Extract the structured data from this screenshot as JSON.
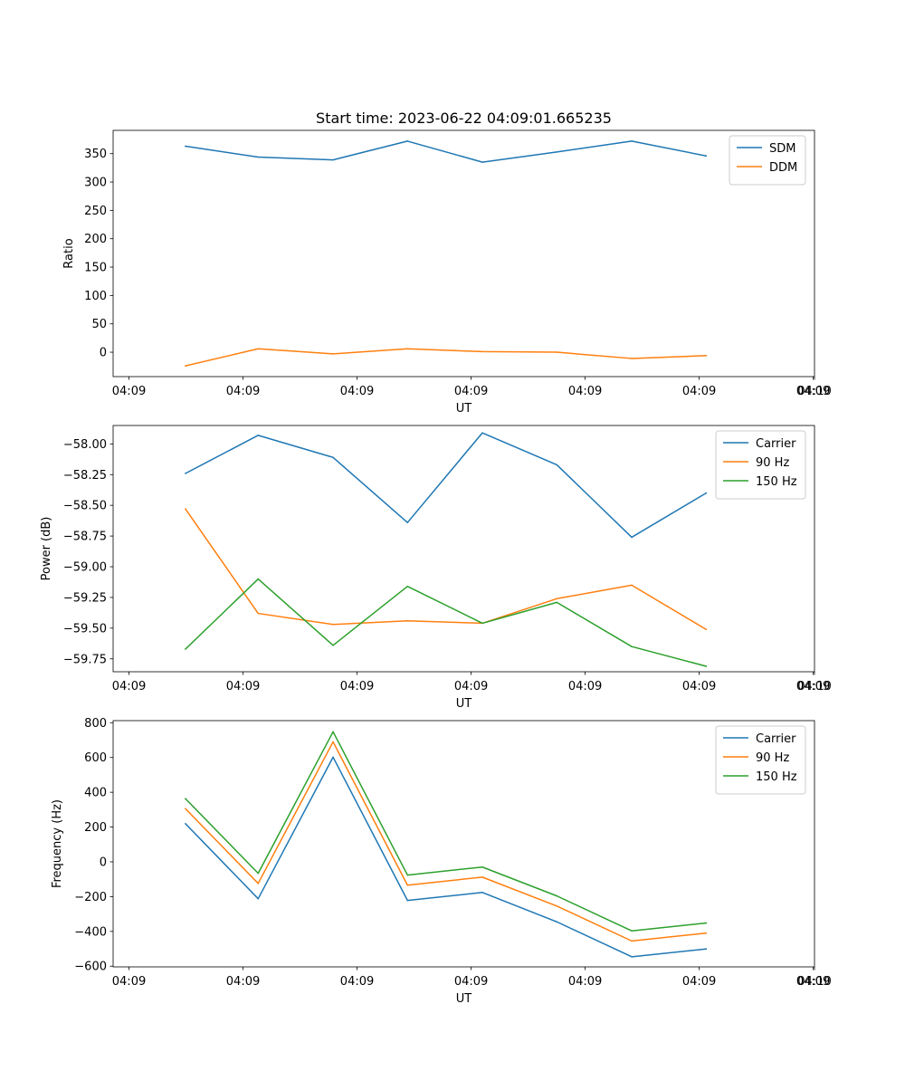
{
  "figure": {
    "title": "Start time: 2023-06-22 04:09:01.665235"
  },
  "chart_data": [
    {
      "type": "line",
      "xlabel": "UT",
      "ylabel": "Ratio",
      "x_tick_labels": [
        "04:09",
        "04:09",
        "04:09",
        "04:09",
        "04:09",
        "04:09",
        "04:09"
      ],
      "x_end_tick_label": "04:10",
      "y_ticks": [
        0,
        50,
        100,
        150,
        200,
        250,
        300,
        350
      ],
      "y_tick_labels": [
        "0",
        "50",
        "100",
        "150",
        "200",
        "250",
        "300",
        "350"
      ],
      "ylim": [
        -43,
        391
      ],
      "legend_position": "upper right",
      "grid": false,
      "series": [
        {
          "name": "SDM",
          "color": "#1f77b4",
          "values": [
            363,
            344,
            339,
            372,
            335,
            353,
            372,
            346
          ]
        },
        {
          "name": "DDM",
          "color": "#ff7f0e",
          "values": [
            -24,
            6,
            -3,
            6,
            1,
            0,
            -11,
            -6
          ]
        }
      ]
    },
    {
      "type": "line",
      "xlabel": "UT",
      "ylabel": "Power (dB)",
      "x_tick_labels": [
        "04:09",
        "04:09",
        "04:09",
        "04:09",
        "04:09",
        "04:09",
        "04:09"
      ],
      "x_end_tick_label": "04:10",
      "y_ticks": [
        -59.75,
        -59.5,
        -59.25,
        -59.0,
        -58.75,
        -58.5,
        -58.25,
        -58.0
      ],
      "y_tick_labels": [
        "−59.75",
        "−59.50",
        "−59.25",
        "−59.00",
        "−58.75",
        "−58.50",
        "−58.25",
        "−58.00"
      ],
      "ylim": [
        -59.855,
        -57.85
      ],
      "legend_position": "upper right",
      "grid": false,
      "series": [
        {
          "name": "Carrier",
          "color": "#1f77b4",
          "values": [
            -58.24,
            -57.93,
            -58.11,
            -58.64,
            -57.91,
            -58.17,
            -58.76,
            -58.4
          ]
        },
        {
          "name": "90 Hz",
          "color": "#ff7f0e",
          "values": [
            -58.53,
            -59.38,
            -59.47,
            -59.44,
            -59.46,
            -59.26,
            -59.15,
            -59.51
          ]
        },
        {
          "name": "150 Hz",
          "color": "#2ca02c",
          "values": [
            -59.67,
            -59.1,
            -59.64,
            -59.16,
            -59.46,
            -59.29,
            -59.65,
            -59.81
          ]
        }
      ]
    },
    {
      "type": "line",
      "xlabel": "UT",
      "ylabel": "Frequency (Hz)",
      "x_tick_labels": [
        "04:09",
        "04:09",
        "04:09",
        "04:09",
        "04:09",
        "04:09",
        "04:09"
      ],
      "x_end_tick_label": "04:10",
      "y_ticks": [
        -600,
        -400,
        -200,
        0,
        200,
        400,
        600,
        800
      ],
      "y_tick_labels": [
        "−600",
        "−400",
        "−200",
        "0",
        "200",
        "400",
        "600",
        "800"
      ],
      "ylim": [
        -604,
        812
      ],
      "legend_position": "upper right",
      "grid": false,
      "series": [
        {
          "name": "Carrier",
          "color": "#1f77b4",
          "values": [
            219,
            -212,
            602,
            -222,
            -176,
            -345,
            -546,
            -501
          ]
        },
        {
          "name": "90 Hz",
          "color": "#ff7f0e",
          "values": [
            305,
            -124,
            690,
            -134,
            -88,
            -254,
            -455,
            -410
          ]
        },
        {
          "name": "150 Hz",
          "color": "#2ca02c",
          "values": [
            363,
            -66,
            748,
            -76,
            -30,
            -196,
            -397,
            -352
          ]
        }
      ]
    }
  ]
}
